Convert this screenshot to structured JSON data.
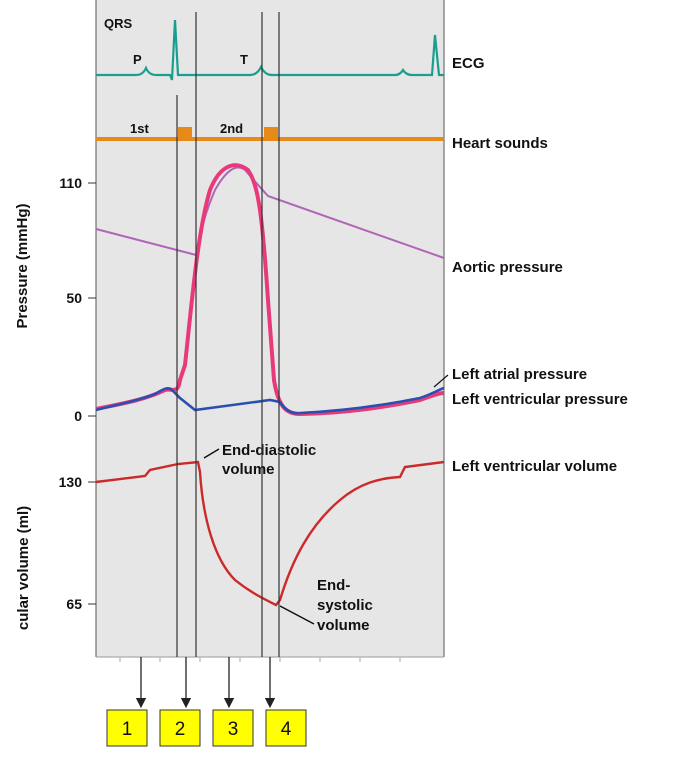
{
  "ecg": {
    "qrs": "QRS",
    "p": "P",
    "t": "T",
    "label": "ECG"
  },
  "heart_sounds": {
    "first": "1st",
    "second": "2nd",
    "label": "Heart sounds"
  },
  "pressure_panel": {
    "ylabel": "Pressure (mmHg)",
    "ticks": [
      "110",
      "50",
      "0"
    ],
    "aortic": "Aortic pressure",
    "atrial": "Left atrial pressure",
    "ventricular": "Left ventricular pressure"
  },
  "volume_panel": {
    "ylabel": "cular volume (ml)",
    "ticks": [
      "130",
      "65"
    ],
    "series": "Left ventricular volume",
    "edv_1": "End-diastolic",
    "edv_2": "volume",
    "esv_1": "End-",
    "esv_2": "systolic",
    "esv_3": "volume"
  },
  "phases": [
    "1",
    "2",
    "3",
    "4"
  ],
  "colors": {
    "panel": "#e6e6e6",
    "ecg": "#1a9e8f",
    "sound": "#e88a1a",
    "ventricular_pressure": "#e83a7a",
    "aortic": "#b066b8",
    "atrial": "#2a4fb0",
    "volume": "#cc2a2a",
    "phase_box": "#ffff00"
  }
}
